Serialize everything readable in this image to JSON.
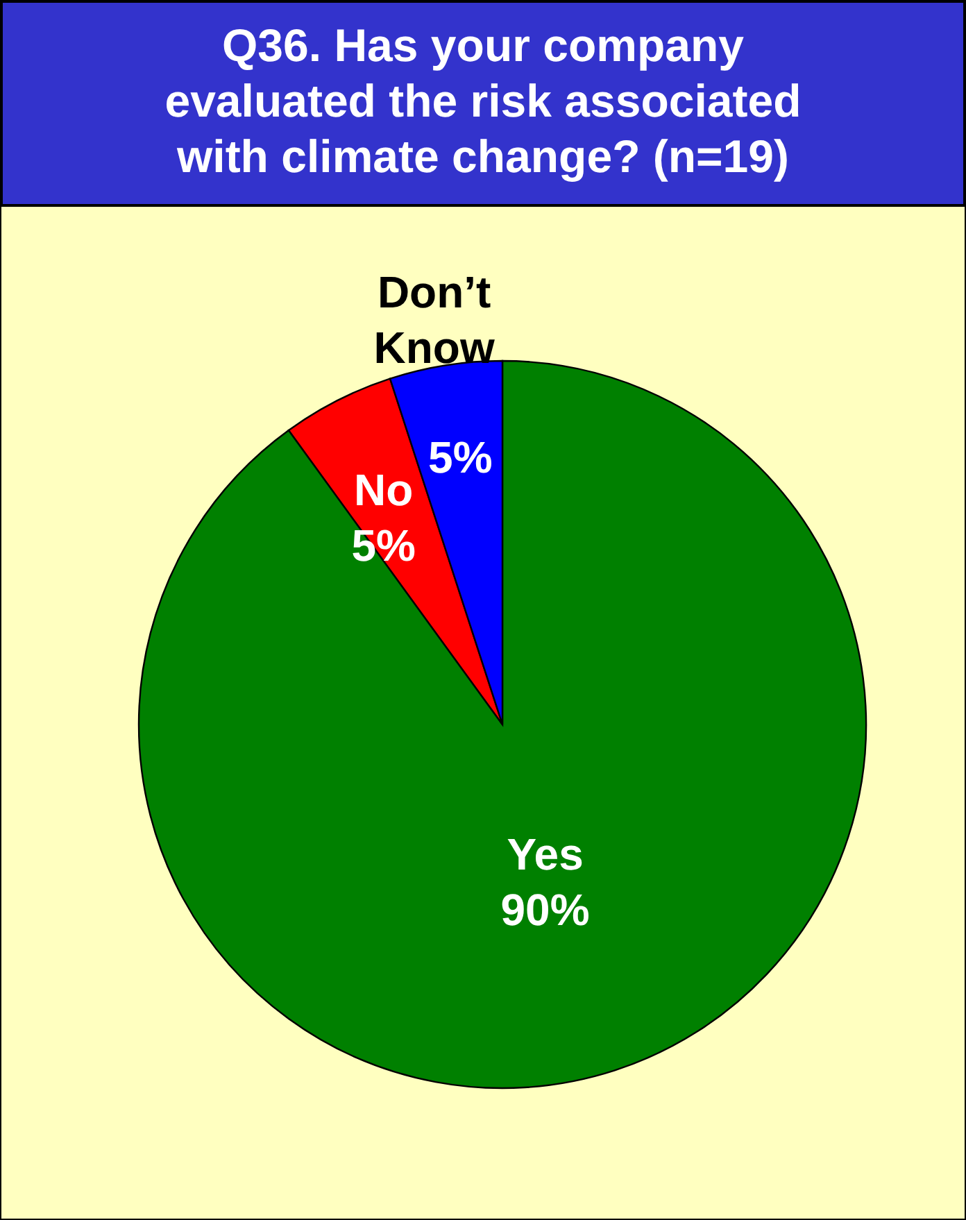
{
  "chart_data": {
    "type": "pie",
    "title": "Q36. Has your company evaluated the risk associated with climate change? (n=19)",
    "categories": [
      "Yes",
      "No",
      "Don’t Know"
    ],
    "values": [
      90,
      5,
      5
    ],
    "colors": [
      "#008000",
      "#ff0000",
      "#0000ff"
    ],
    "value_labels": [
      "90%",
      "5%",
      "5%"
    ]
  }
}
